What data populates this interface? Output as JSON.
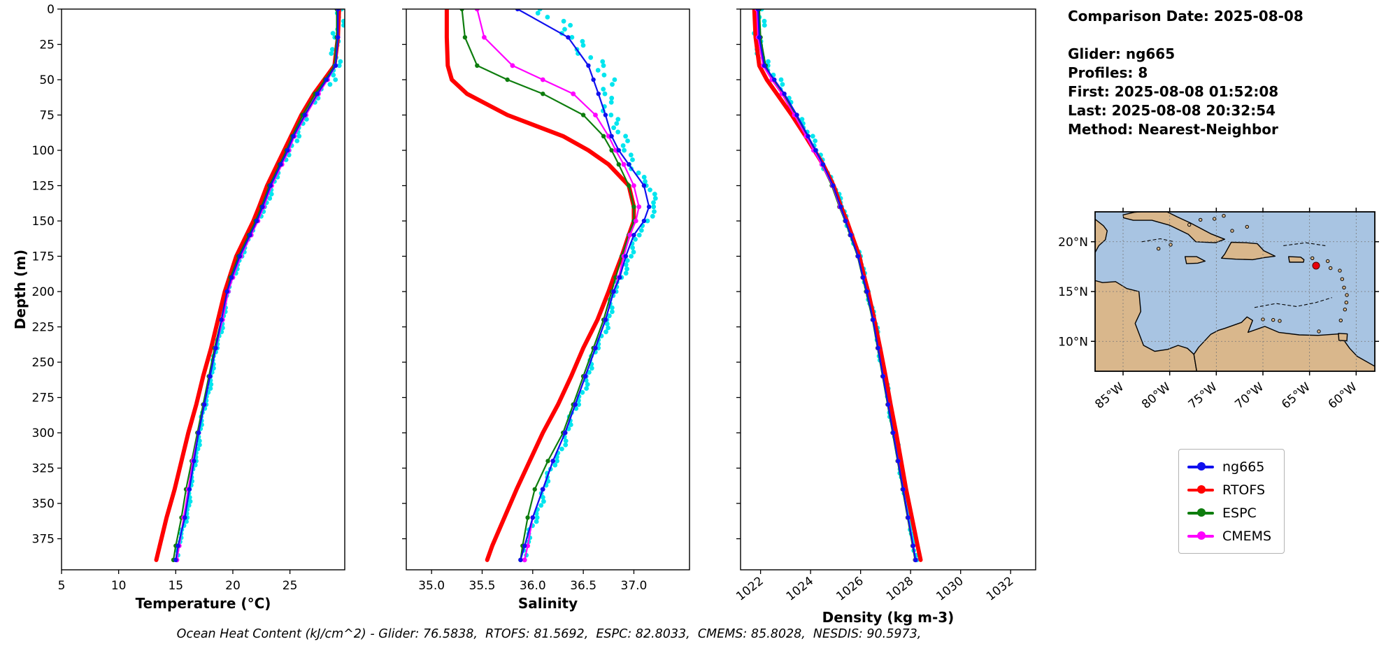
{
  "info_panel": {
    "comparison_date": "Comparison Date: 2025-08-08",
    "glider": "Glider: ng665",
    "profiles": "Profiles: 8",
    "first": "First: 2025-08-08 01:52:08",
    "last": "Last: 2025-08-08 20:32:54",
    "method": "Method: Nearest-Neighbor"
  },
  "legend": {
    "entries": [
      {
        "label": "ng665",
        "color": "#1010ee"
      },
      {
        "label": "RTOFS",
        "color": "#ff0000"
      },
      {
        "label": "ESPC",
        "color": "#0e7d0e"
      },
      {
        "label": "CMEMS",
        "color": "#ff00ff"
      }
    ]
  },
  "footer": {
    "text": "Ocean Heat Content (kJ/cm^2) - Glider: 76.5838,  RTOFS: 81.5692,  ESPC: 82.8033,  CMEMS: 85.8028,  NESDIS: 90.5973,"
  },
  "map": {
    "lon_range": [
      -88,
      -58
    ],
    "lat_range": [
      7,
      23
    ],
    "lat_ticks": [
      {
        "lat": 20,
        "label": "20°N"
      },
      {
        "lat": 15,
        "label": "15°N"
      },
      {
        "lat": 10,
        "label": "10°N"
      }
    ],
    "lon_ticks": [
      {
        "lon": -85,
        "label": "85°W"
      },
      {
        "lon": -80,
        "label": "80°W"
      },
      {
        "lon": -75,
        "label": "75°W"
      },
      {
        "lon": -70,
        "label": "70°W"
      },
      {
        "lon": -65,
        "label": "65°W"
      },
      {
        "lon": -60,
        "label": "60°W"
      }
    ],
    "marker": {
      "lon": -64.3,
      "lat": 17.6
    },
    "marker_color": "#e8000b",
    "ocean_color": "#a8c4e2",
    "land_color": "#d9b78c"
  },
  "chart_data": [
    {
      "type": "line",
      "key": "temperature",
      "xlabel": "Temperature (°C)",
      "ylabel": "Depth (m)",
      "xlim": [
        5,
        29.8
      ],
      "ylim": [
        0,
        397
      ],
      "xticks": [
        5,
        10,
        15,
        20,
        25
      ],
      "xtick_labels": [
        "5",
        "10",
        "15",
        "20",
        "25"
      ],
      "xtick_rotation": 0,
      "yticks": [
        0,
        25,
        50,
        75,
        100,
        125,
        150,
        175,
        200,
        225,
        250,
        275,
        300,
        325,
        350,
        375
      ],
      "show_ytick_labels": true,
      "depths": [
        0,
        20,
        40,
        50,
        60,
        75,
        90,
        100,
        110,
        125,
        140,
        150,
        160,
        175,
        190,
        200,
        220,
        240,
        260,
        280,
        300,
        320,
        340,
        360,
        380,
        390
      ],
      "series": [
        {
          "name": "glider-raw",
          "color": "#00e5ee",
          "style": "scatter",
          "size": 3.4,
          "spread": 3,
          "values": [
            29.2,
            29.2,
            29.1,
            28.5,
            27.6,
            26.5,
            25.5,
            25.0,
            24.4,
            23.5,
            22.8,
            22.2,
            21.6,
            20.7,
            20.0,
            19.6,
            19.1,
            18.6,
            18.1,
            17.6,
            17.1,
            16.7,
            16.3,
            15.9,
            15.3,
            15.1
          ]
        },
        {
          "name": "RTOFS",
          "color": "#ff0000",
          "width": 6,
          "marker": 0,
          "values": [
            29.3,
            29.2,
            28.9,
            28.0,
            27.1,
            26.0,
            25.1,
            24.5,
            23.9,
            23.0,
            22.3,
            21.8,
            21.2,
            20.3,
            19.7,
            19.3,
            18.7,
            18.1,
            17.4,
            16.8,
            16.1,
            15.5,
            14.9,
            14.2,
            13.6,
            13.3
          ]
        },
        {
          "name": "ESPC",
          "color": "#0e7d0e",
          "width": 2.2,
          "marker": 3.2,
          "values": [
            29.1,
            29.1,
            28.9,
            28.1,
            27.2,
            26.1,
            25.2,
            24.7,
            24.1,
            23.2,
            22.5,
            22.0,
            21.4,
            20.5,
            19.8,
            19.5,
            19.0,
            18.4,
            17.9,
            17.4,
            16.9,
            16.4,
            15.9,
            15.5,
            15.0,
            14.8
          ]
        },
        {
          "name": "CMEMS",
          "color": "#ff00ff",
          "width": 2.2,
          "marker": 3.4,
          "values": [
            29.2,
            29.2,
            29.0,
            28.3,
            27.5,
            26.4,
            25.4,
            24.9,
            24.3,
            23.4,
            22.7,
            22.2,
            21.6,
            20.7,
            20.0,
            19.6,
            19.1,
            18.5,
            18.0,
            17.5,
            17.0,
            16.5,
            16.1,
            15.7,
            15.3,
            15.1
          ]
        },
        {
          "name": "ng665",
          "color": "#1010ee",
          "width": 2.2,
          "marker": 3.2,
          "values": [
            29.2,
            29.2,
            29.0,
            28.2,
            27.4,
            26.3,
            25.3,
            24.8,
            24.2,
            23.3,
            22.6,
            22.1,
            21.5,
            20.6,
            19.9,
            19.5,
            19.0,
            18.5,
            18.0,
            17.5,
            17.0,
            16.6,
            16.2,
            15.8,
            15.2,
            15.0
          ]
        }
      ]
    },
    {
      "type": "line",
      "key": "salinity",
      "xlabel": "Salinity",
      "ylabel": "",
      "xlim": [
        34.75,
        37.55
      ],
      "ylim": [
        0,
        397
      ],
      "xticks": [
        35.0,
        35.5,
        36.0,
        36.5,
        37.0
      ],
      "xtick_labels": [
        "35.0",
        "35.5",
        "36.0",
        "36.5",
        "37.0"
      ],
      "xtick_rotation": 0,
      "yticks": [
        0,
        25,
        50,
        75,
        100,
        125,
        150,
        175,
        200,
        225,
        250,
        275,
        300,
        325,
        350,
        375
      ],
      "show_ytick_labels": false,
      "depths": [
        0,
        20,
        40,
        50,
        60,
        75,
        90,
        100,
        110,
        125,
        140,
        150,
        160,
        175,
        190,
        200,
        220,
        240,
        260,
        280,
        300,
        320,
        340,
        360,
        380,
        390
      ],
      "series": [
        {
          "name": "glider-raw",
          "color": "#00e5ee",
          "style": "scatter",
          "size": 3.4,
          "spread": 6,
          "values": [
            36.0,
            36.45,
            36.65,
            36.7,
            36.75,
            36.8,
            36.85,
            36.92,
            37.0,
            37.15,
            37.2,
            37.15,
            37.05,
            36.95,
            36.88,
            36.82,
            36.74,
            36.64,
            36.54,
            36.44,
            36.34,
            36.22,
            36.12,
            36.02,
            35.95,
            35.92
          ]
        },
        {
          "name": "RTOFS",
          "color": "#ff0000",
          "width": 6,
          "marker": 0,
          "values": [
            35.15,
            35.15,
            35.16,
            35.2,
            35.35,
            35.75,
            36.3,
            36.55,
            36.75,
            36.95,
            37.0,
            37.0,
            36.95,
            36.88,
            36.8,
            36.75,
            36.64,
            36.5,
            36.38,
            36.25,
            36.1,
            35.97,
            35.84,
            35.72,
            35.6,
            35.55
          ]
        },
        {
          "name": "ESPC",
          "color": "#0e7d0e",
          "width": 2.2,
          "marker": 3.2,
          "values": [
            35.3,
            35.33,
            35.45,
            35.75,
            36.1,
            36.5,
            36.7,
            36.78,
            36.85,
            36.95,
            37.0,
            37.0,
            36.95,
            36.88,
            36.82,
            36.78,
            36.7,
            36.6,
            36.5,
            36.4,
            36.3,
            36.15,
            36.02,
            35.95,
            35.9,
            35.88
          ]
        },
        {
          "name": "CMEMS",
          "color": "#ff00ff",
          "width": 2.2,
          "marker": 3.4,
          "values": [
            35.45,
            35.52,
            35.8,
            36.1,
            36.4,
            36.62,
            36.75,
            36.82,
            36.9,
            37.0,
            37.05,
            37.02,
            36.96,
            36.9,
            36.85,
            36.8,
            36.72,
            36.62,
            36.52,
            36.42,
            36.32,
            36.2,
            36.1,
            36.0,
            35.95,
            35.92
          ]
        },
        {
          "name": "ng665",
          "color": "#1010ee",
          "width": 2.2,
          "marker": 3.2,
          "values": [
            35.85,
            36.35,
            36.55,
            36.6,
            36.65,
            36.72,
            36.78,
            36.85,
            36.95,
            37.1,
            37.15,
            37.1,
            37.0,
            36.92,
            36.86,
            36.8,
            36.72,
            36.62,
            36.52,
            36.42,
            36.32,
            36.2,
            36.1,
            36.0,
            35.92,
            35.88
          ]
        }
      ]
    },
    {
      "type": "line",
      "key": "density",
      "xlabel": "Density (kg m-3)",
      "ylabel": "",
      "xlim": [
        1021.2,
        1033.0
      ],
      "ylim": [
        0,
        397
      ],
      "xticks": [
        1022,
        1024,
        1026,
        1028,
        1030,
        1032
      ],
      "xtick_labels": [
        "1022",
        "1024",
        "1026",
        "1028",
        "1030",
        "1032"
      ],
      "xtick_rotation": 38,
      "yticks": [
        0,
        25,
        50,
        75,
        100,
        125,
        150,
        175,
        200,
        225,
        250,
        275,
        300,
        325,
        350,
        375
      ],
      "show_ytick_labels": false,
      "depths": [
        0,
        20,
        40,
        50,
        60,
        75,
        90,
        100,
        110,
        125,
        140,
        150,
        160,
        175,
        190,
        200,
        220,
        240,
        260,
        280,
        300,
        320,
        340,
        360,
        380,
        390
      ],
      "series": [
        {
          "name": "glider-raw",
          "color": "#00e5ee",
          "style": "scatter",
          "size": 3.4,
          "spread": 3,
          "values": [
            1021.9,
            1021.95,
            1022.2,
            1022.6,
            1023.0,
            1023.5,
            1023.95,
            1024.25,
            1024.55,
            1024.95,
            1025.25,
            1025.45,
            1025.65,
            1025.95,
            1026.15,
            1026.3,
            1026.55,
            1026.75,
            1026.95,
            1027.15,
            1027.35,
            1027.55,
            1027.75,
            1027.95,
            1028.15,
            1028.25
          ]
        },
        {
          "name": "RTOFS",
          "color": "#ff0000",
          "width": 6,
          "marker": 0,
          "values": [
            1021.75,
            1021.8,
            1021.95,
            1022.25,
            1022.65,
            1023.25,
            1023.8,
            1024.15,
            1024.5,
            1024.92,
            1025.22,
            1025.45,
            1025.65,
            1025.95,
            1026.15,
            1026.3,
            1026.55,
            1026.78,
            1027.0,
            1027.2,
            1027.42,
            1027.62,
            1027.82,
            1028.05,
            1028.28,
            1028.4
          ]
        },
        {
          "name": "ESPC",
          "color": "#0e7d0e",
          "width": 2.2,
          "marker": 3.2,
          "values": [
            1021.95,
            1022.0,
            1022.2,
            1022.5,
            1022.9,
            1023.4,
            1023.85,
            1024.15,
            1024.45,
            1024.85,
            1025.15,
            1025.38,
            1025.58,
            1025.88,
            1026.08,
            1026.22,
            1026.48,
            1026.68,
            1026.88,
            1027.08,
            1027.28,
            1027.48,
            1027.68,
            1027.88,
            1028.08,
            1028.18
          ]
        },
        {
          "name": "CMEMS",
          "color": "#ff00ff",
          "width": 2.2,
          "marker": 3.4,
          "values": [
            1021.85,
            1021.9,
            1022.1,
            1022.45,
            1022.85,
            1023.35,
            1023.82,
            1024.12,
            1024.45,
            1024.88,
            1025.18,
            1025.4,
            1025.6,
            1025.9,
            1026.1,
            1026.25,
            1026.5,
            1026.7,
            1026.9,
            1027.1,
            1027.3,
            1027.5,
            1027.7,
            1027.9,
            1028.1,
            1028.2
          ]
        },
        {
          "name": "ng665",
          "color": "#1010ee",
          "width": 2.2,
          "marker": 3.2,
          "values": [
            1021.9,
            1021.95,
            1022.15,
            1022.55,
            1022.95,
            1023.45,
            1023.9,
            1024.2,
            1024.5,
            1024.9,
            1025.2,
            1025.4,
            1025.6,
            1025.9,
            1026.1,
            1026.25,
            1026.5,
            1026.7,
            1026.9,
            1027.1,
            1027.3,
            1027.5,
            1027.7,
            1027.9,
            1028.1,
            1028.2
          ]
        }
      ]
    }
  ]
}
